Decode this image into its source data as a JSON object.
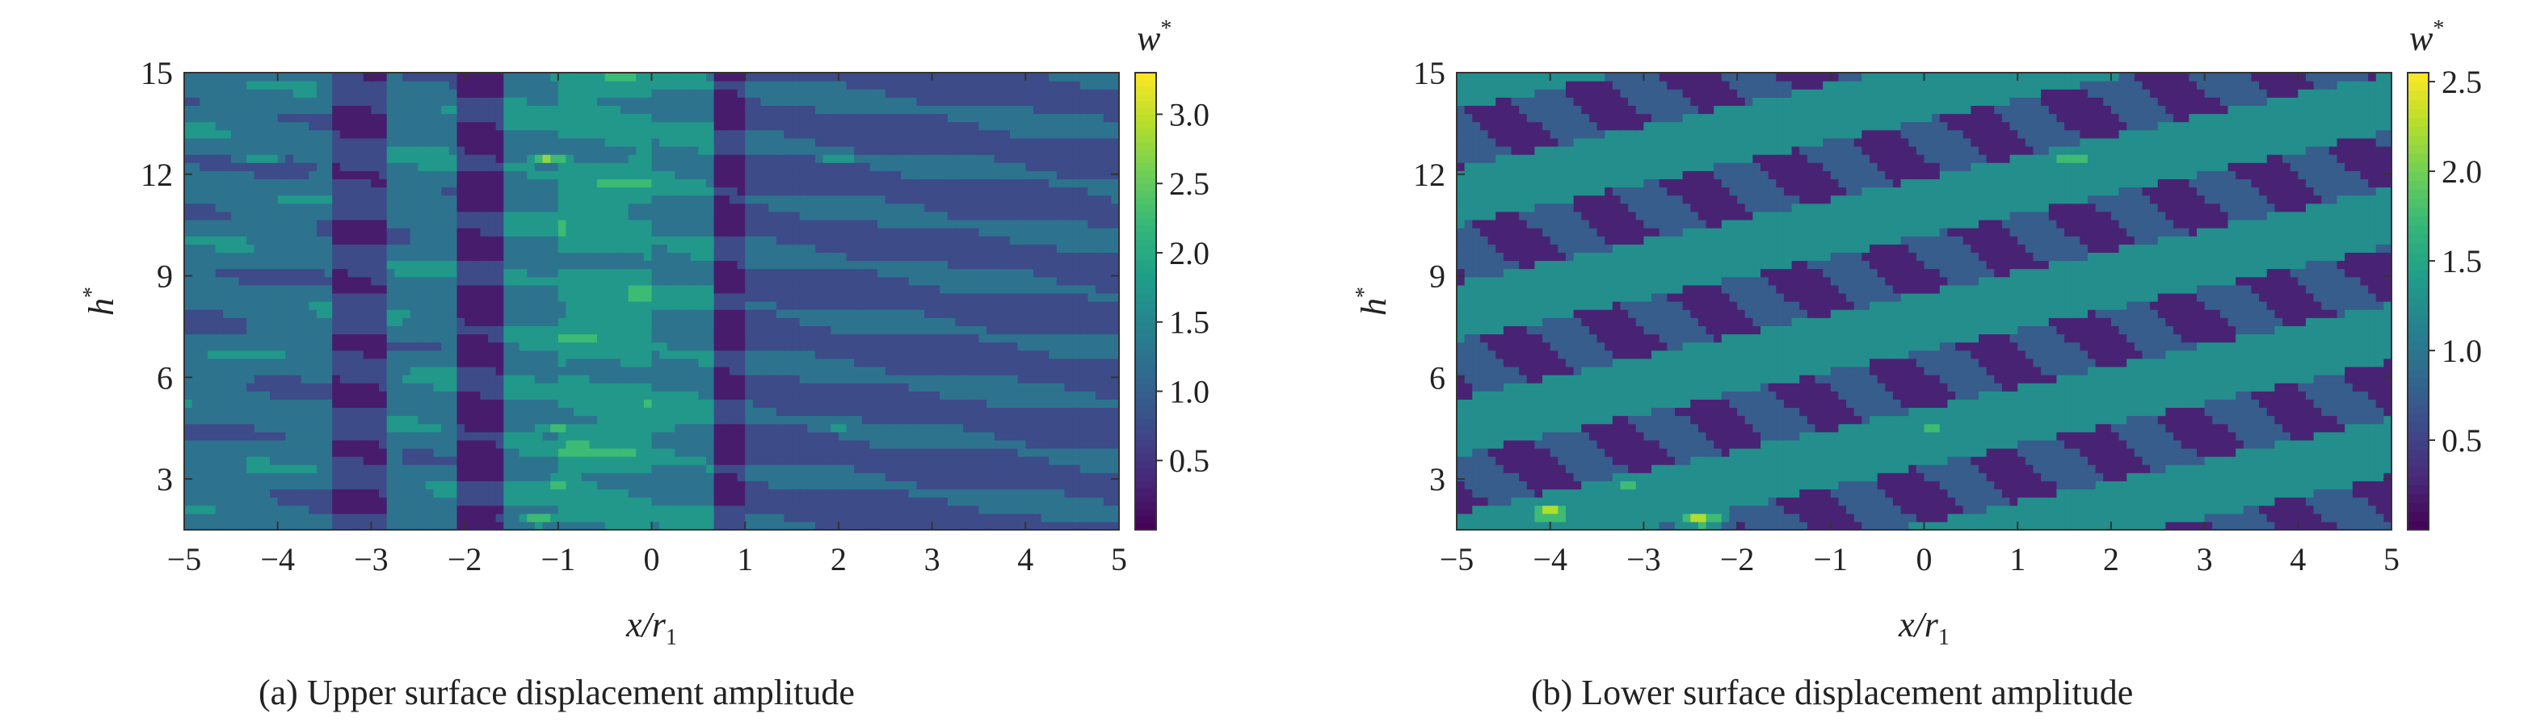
{
  "chart_data": [
    {
      "type": "heatmap",
      "subtitle": "(a) Upper surface displacement amplitude",
      "xlabel_main": "x",
      "xlabel_rest": "/r",
      "xlabel_sub": "1",
      "ylabel_main": "h",
      "ylabel_sup": "*",
      "colorbar_label_main": "w",
      "colorbar_label_sup": "*",
      "xlim": [
        -5,
        5
      ],
      "ylim": [
        1.5,
        15
      ],
      "xticks": [
        -5,
        -4,
        -3,
        -2,
        -1,
        0,
        1,
        2,
        3,
        4,
        5
      ],
      "xtick_labels": [
        "−5",
        "−4",
        "−3",
        "−2",
        "−1",
        "0",
        "1",
        "2",
        "3",
        "4",
        "5"
      ],
      "yticks": [
        3,
        6,
        9,
        12,
        15
      ],
      "ytick_labels": [
        "3",
        "6",
        "9",
        "12",
        "15"
      ],
      "colorbar_range": [
        0,
        3.3
      ],
      "colorbar_ticks": [
        0.5,
        1.0,
        1.5,
        2.0,
        2.5,
        3.0
      ],
      "colorbar_tick_labels": [
        "0.5",
        "1.0",
        "1.5",
        "2.0",
        "2.5",
        "3.0"
      ],
      "colormap": "viridis",
      "field_description": "vertical bands",
      "bands": [
        {
          "x_range": [
            -5,
            -3.4
          ],
          "level": 1.2
        },
        {
          "x_range": [
            -3.4,
            -2.8
          ],
          "level": 0.6
        },
        {
          "x_range": [
            -2.8,
            -2.1
          ],
          "level": 1.3
        },
        {
          "x_range": [
            -2.1,
            -1.6
          ],
          "level": 0.4
        },
        {
          "x_range": [
            -1.6,
            -1.0
          ],
          "level": 1.4
        },
        {
          "x_range": [
            -1.0,
            0.0
          ],
          "level": 1.7
        },
        {
          "x_range": [
            0.0,
            0.7
          ],
          "level": 1.4
        },
        {
          "x_range": [
            0.7,
            1.0
          ],
          "level": 0.4
        },
        {
          "x_range": [
            1.0,
            5
          ],
          "level": 0.9
        }
      ],
      "peaks": [
        {
          "x": -1.1,
          "y": 12.5,
          "level": 2.6
        },
        {
          "x": -1.0,
          "y": 4.5,
          "level": 2.2
        },
        {
          "x": -1.0,
          "y": 2.9,
          "level": 2.4
        },
        {
          "x": -1.2,
          "y": 1.8,
          "level": 2.3
        },
        {
          "x": 0.1,
          "y": 4.6,
          "level": 2.1
        },
        {
          "x": -4.2,
          "y": 12.5,
          "level": 1.9
        },
        {
          "x": 2.0,
          "y": 12.5,
          "level": 1.9
        },
        {
          "x": 2.0,
          "y": 4.6,
          "level": 1.8
        }
      ]
    },
    {
      "type": "heatmap",
      "subtitle": "(b) Lower surface displacement amplitude",
      "xlabel_main": "x",
      "xlabel_rest": "/r",
      "xlabel_sub": "1",
      "ylabel_main": "h",
      "ylabel_sup": "*",
      "colorbar_label_main": "w",
      "colorbar_label_sup": "*",
      "xlim": [
        -5,
        5
      ],
      "ylim": [
        1.5,
        15
      ],
      "xticks": [
        -5,
        -4,
        -3,
        -2,
        -1,
        0,
        1,
        2,
        3,
        4,
        5
      ],
      "xtick_labels": [
        "−5",
        "−4",
        "−3",
        "−2",
        "−1",
        "0",
        "1",
        "2",
        "3",
        "4",
        "5"
      ],
      "yticks": [
        3,
        6,
        9,
        12,
        15
      ],
      "ytick_labels": [
        "3",
        "6",
        "9",
        "12",
        "15"
      ],
      "colorbar_range": [
        0,
        2.55
      ],
      "colorbar_ticks": [
        0.5,
        1.0,
        1.5,
        2.0,
        2.5
      ],
      "colorbar_tick_labels": [
        "0.5",
        "1.0",
        "1.5",
        "2.0",
        "2.5"
      ],
      "colormap": "viridis",
      "field_description": "diagonal stripes rising to the right",
      "stripes": {
        "slope": 0.62,
        "period": 3.4,
        "high_level": 1.3,
        "low_level": 0.5
      },
      "peaks": [
        {
          "x": -4.0,
          "y": 2.0,
          "level": 2.4
        },
        {
          "x": -2.4,
          "y": 1.8,
          "level": 2.3
        },
        {
          "x": 0.1,
          "y": 4.6,
          "level": 1.8
        },
        {
          "x": 1.6,
          "y": 12.5,
          "level": 1.8
        },
        {
          "x": -3.2,
          "y": 2.9,
          "level": 1.7
        },
        {
          "x": 3.0,
          "y": 3.2,
          "level": 1.7
        }
      ]
    }
  ]
}
